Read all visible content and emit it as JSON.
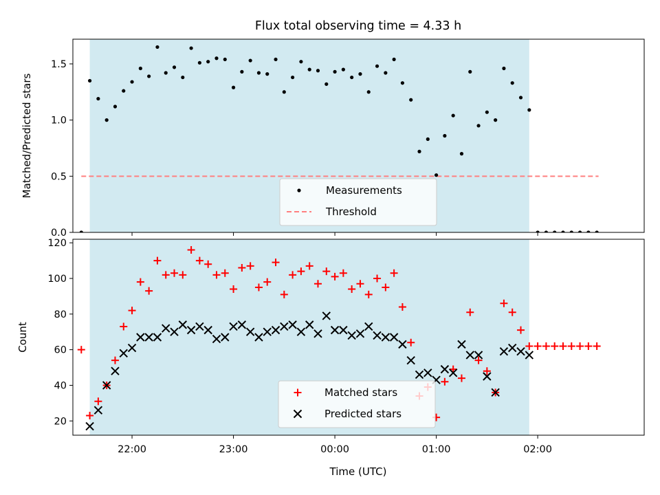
{
  "title": "Flux total observing time = 4.33 h",
  "xlabel": "Time (UTC)",
  "colors": {
    "observing_span": "#add8e6",
    "threshold": "#ff7f7f",
    "matched": "#ff0000",
    "predicted": "#000000",
    "measurements": "#000000"
  },
  "chart_data": [
    {
      "type": "scatter",
      "ylabel": "Matched/Predicted stars",
      "ylim": [
        0,
        1.72
      ],
      "xlim": [
        "21:25",
        "03:03"
      ],
      "yticks": [
        0.0,
        0.5,
        1.0,
        1.5
      ],
      "ytick_labels": [
        "0.0",
        "0.5",
        "1.0",
        "1.5"
      ],
      "observing_span": [
        "21:35",
        "01:55"
      ],
      "threshold": {
        "value": 0.5,
        "from": "21:30",
        "to": "02:36"
      },
      "legend": {
        "position": "lower-center",
        "entries": [
          "Measurements",
          "Threshold"
        ]
      },
      "series": [
        {
          "name": "Measurements",
          "marker": "dot",
          "x": [
            "21:30",
            "21:35",
            "21:40",
            "21:45",
            "21:50",
            "21:55",
            "22:00",
            "22:05",
            "22:10",
            "22:15",
            "22:20",
            "22:25",
            "22:30",
            "22:35",
            "22:40",
            "22:45",
            "22:50",
            "22:55",
            "23:00",
            "23:05",
            "23:10",
            "23:15",
            "23:20",
            "23:25",
            "23:30",
            "23:35",
            "23:40",
            "23:45",
            "23:50",
            "23:55",
            "00:00",
            "00:05",
            "00:10",
            "00:15",
            "00:20",
            "00:25",
            "00:30",
            "00:35",
            "00:40",
            "00:45",
            "00:50",
            "00:55",
            "01:00",
            "01:05",
            "01:10",
            "01:15",
            "01:20",
            "01:25",
            "01:30",
            "01:35",
            "01:40",
            "01:45",
            "01:50",
            "01:55",
            "02:00",
            "02:05",
            "02:10",
            "02:15",
            "02:20",
            "02:25",
            "02:30",
            "02:35"
          ],
          "y": [
            0.0,
            1.35,
            1.19,
            1.0,
            1.12,
            1.26,
            1.34,
            1.46,
            1.39,
            1.65,
            1.42,
            1.47,
            1.38,
            1.64,
            1.51,
            1.52,
            1.55,
            1.54,
            1.29,
            1.43,
            1.53,
            1.42,
            1.41,
            1.54,
            1.25,
            1.38,
            1.52,
            1.45,
            1.44,
            1.32,
            1.43,
            1.45,
            1.38,
            1.41,
            1.25,
            1.48,
            1.42,
            1.54,
            1.33,
            1.18,
            0.72,
            0.83,
            0.51,
            0.86,
            1.04,
            0.7,
            1.43,
            0.95,
            1.07,
            1.0,
            1.46,
            1.33,
            1.2,
            1.09,
            0.0,
            0.0,
            0.0,
            0.0,
            0.0,
            0.0,
            0.0,
            0.0
          ]
        }
      ]
    },
    {
      "type": "scatter",
      "ylabel": "Count",
      "ylim": [
        12,
        122
      ],
      "xlim": [
        "21:25",
        "03:03"
      ],
      "yticks": [
        20,
        40,
        60,
        80,
        100,
        120
      ],
      "ytick_labels": [
        "20",
        "40",
        "60",
        "80",
        "100",
        "120"
      ],
      "xticks": [
        "22:00",
        "23:00",
        "00:00",
        "01:00",
        "02:00"
      ],
      "observing_span": [
        "21:35",
        "01:55"
      ],
      "legend": {
        "position": "lower-center",
        "entries": [
          "Matched stars",
          "Predicted stars"
        ]
      },
      "series": [
        {
          "name": "Matched stars",
          "marker": "plus",
          "x": [
            "21:30",
            "21:35",
            "21:40",
            "21:45",
            "21:50",
            "21:55",
            "22:00",
            "22:05",
            "22:10",
            "22:15",
            "22:20",
            "22:25",
            "22:30",
            "22:35",
            "22:40",
            "22:45",
            "22:50",
            "22:55",
            "23:00",
            "23:05",
            "23:10",
            "23:15",
            "23:20",
            "23:25",
            "23:30",
            "23:35",
            "23:40",
            "23:45",
            "23:50",
            "23:55",
            "00:00",
            "00:05",
            "00:10",
            "00:15",
            "00:20",
            "00:25",
            "00:30",
            "00:35",
            "00:40",
            "00:45",
            "00:50",
            "00:55",
            "01:00",
            "01:05",
            "01:10",
            "01:15",
            "01:20",
            "01:25",
            "01:30",
            "01:35",
            "01:40",
            "01:45",
            "01:50",
            "01:55",
            "02:00",
            "02:05",
            "02:10",
            "02:15",
            "02:20",
            "02:25",
            "02:30",
            "02:35"
          ],
          "y": [
            60,
            23,
            31,
            40,
            54,
            73,
            82,
            98,
            93,
            110,
            102,
            103,
            102,
            116,
            110,
            108,
            102,
            103,
            94,
            106,
            107,
            95,
            98,
            109,
            91,
            102,
            104,
            107,
            97,
            104,
            101,
            103,
            94,
            97,
            91,
            100,
            95,
            103,
            84,
            64,
            34,
            39,
            22,
            42,
            49,
            44,
            81,
            54,
            48,
            36,
            86,
            81,
            71,
            62,
            62,
            62,
            62,
            62,
            62,
            62,
            62,
            62
          ]
        },
        {
          "name": "Predicted stars",
          "marker": "x",
          "x": [
            "21:35",
            "21:40",
            "21:45",
            "21:50",
            "21:55",
            "22:00",
            "22:05",
            "22:10",
            "22:15",
            "22:20",
            "22:25",
            "22:30",
            "22:35",
            "22:40",
            "22:45",
            "22:50",
            "22:55",
            "23:00",
            "23:05",
            "23:10",
            "23:15",
            "23:20",
            "23:25",
            "23:30",
            "23:35",
            "23:40",
            "23:45",
            "23:50",
            "23:55",
            "00:00",
            "00:05",
            "00:10",
            "00:15",
            "00:20",
            "00:25",
            "00:30",
            "00:35",
            "00:40",
            "00:45",
            "00:50",
            "00:55",
            "01:00",
            "01:05",
            "01:10",
            "01:15",
            "01:20",
            "01:25",
            "01:30",
            "01:35",
            "01:40",
            "01:45",
            "01:50",
            "01:55"
          ],
          "y": [
            17,
            26,
            40,
            48,
            58,
            61,
            67,
            67,
            67,
            72,
            70,
            74,
            71,
            73,
            71,
            66,
            67,
            73,
            74,
            70,
            67,
            70,
            71,
            73,
            74,
            70,
            74,
            69,
            79,
            71,
            71,
            68,
            69,
            73,
            68,
            67,
            67,
            63,
            54,
            46,
            47,
            43,
            49,
            47,
            63,
            57,
            57,
            45,
            36,
            59,
            61,
            59,
            57
          ]
        }
      ]
    }
  ]
}
